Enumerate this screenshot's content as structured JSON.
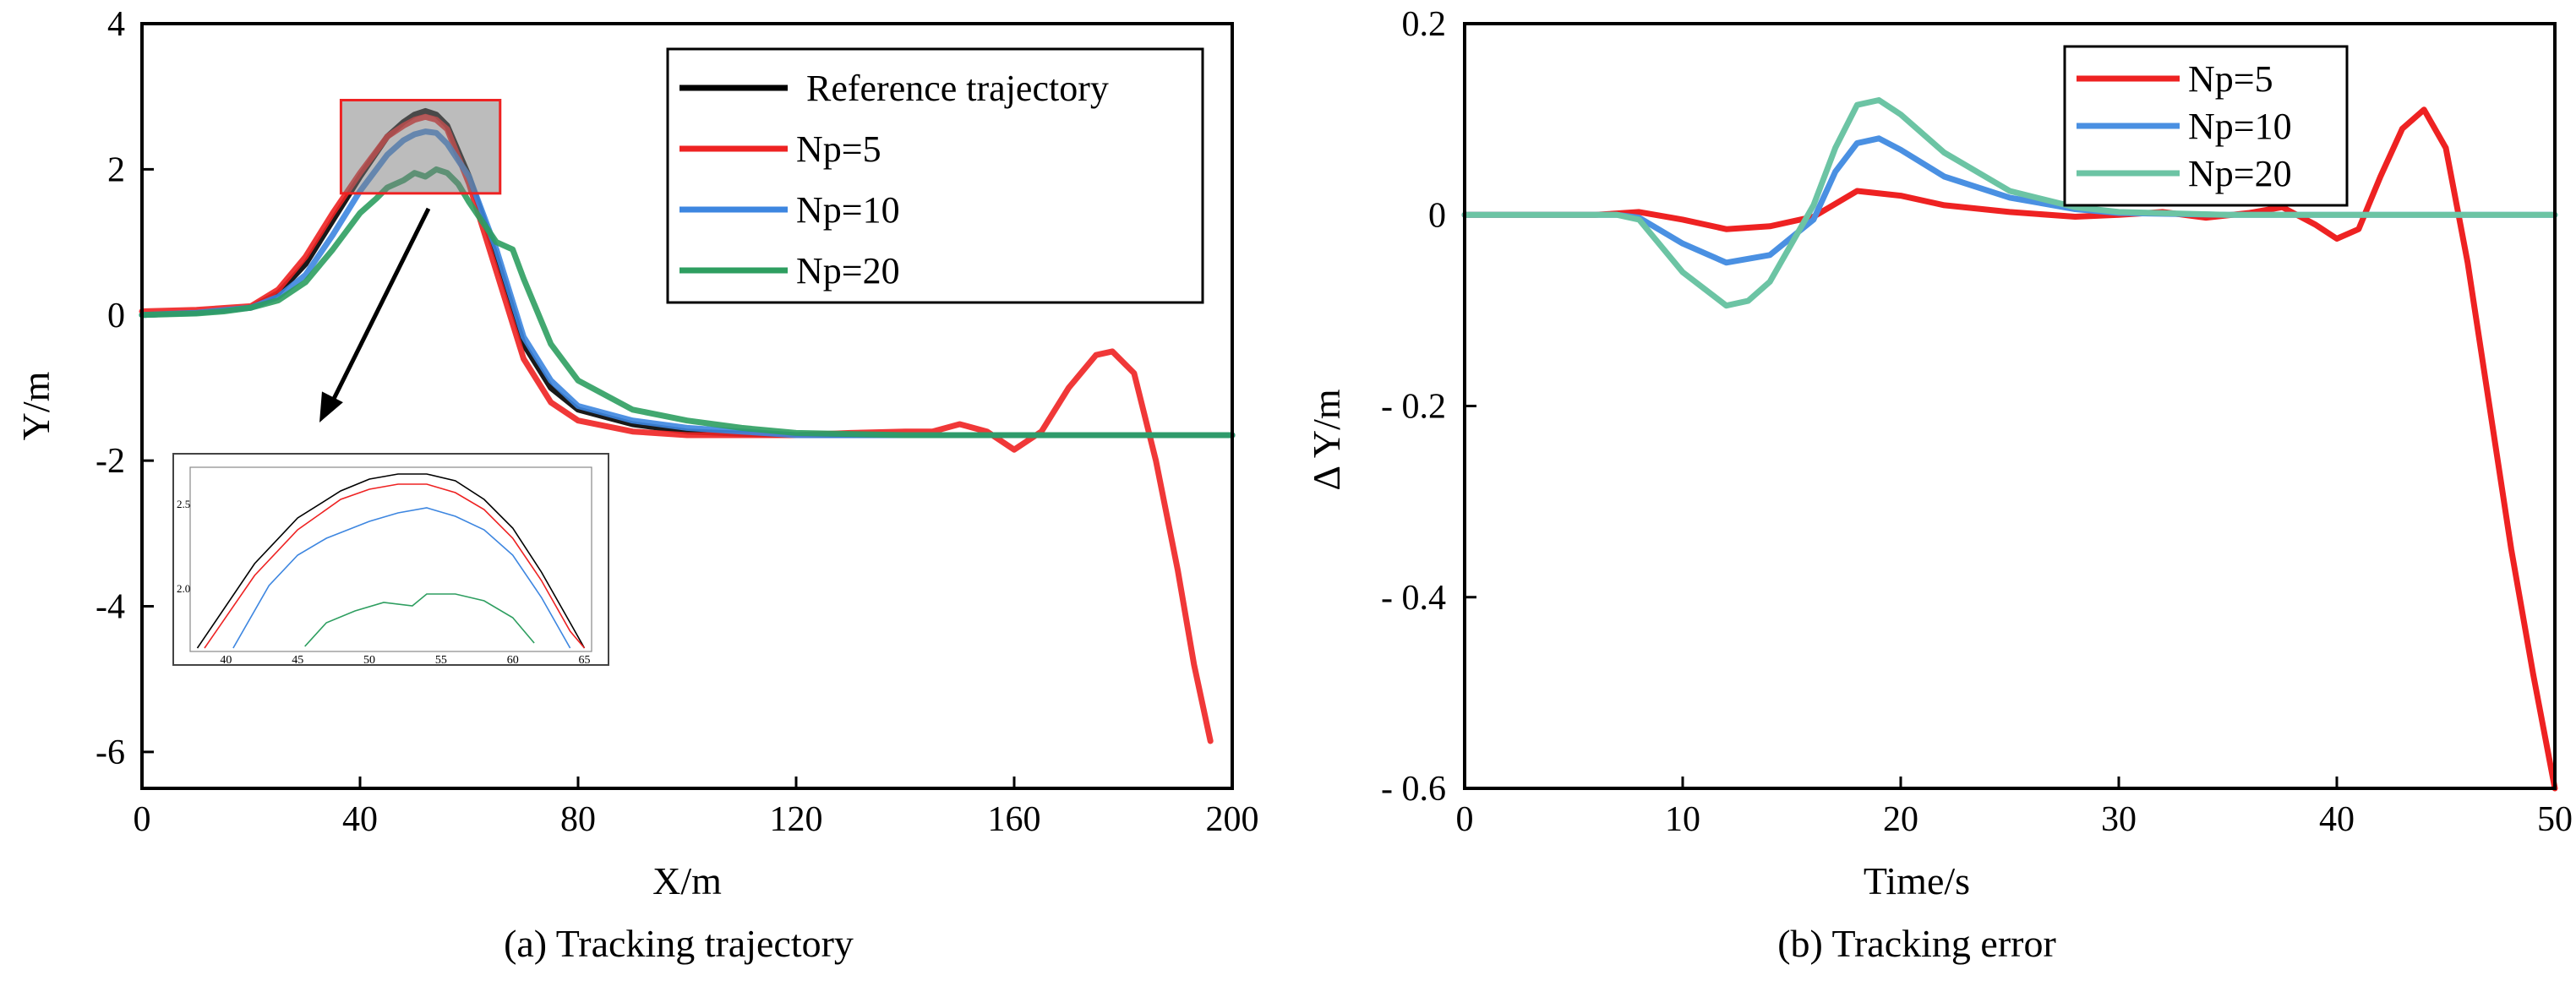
{
  "chart_data": [
    {
      "type": "line",
      "caption": "(a) Tracking trajectory",
      "xlabel": "X/m",
      "ylabel": "Y/m",
      "xlim": [
        0,
        200
      ],
      "ylim": [
        -6.5,
        4
      ],
      "x_ticks": [
        0,
        40,
        80,
        120,
        160,
        200
      ],
      "y_ticks": [
        4,
        2,
        0,
        -2,
        -4,
        -6
      ],
      "x_tick_labels": [
        "0",
        "40",
        "80",
        "120",
        "160",
        "200"
      ],
      "y_tick_labels": [
        "4",
        "2",
        "0",
        "-2",
        "-4",
        "-6"
      ],
      "legend": {
        "position": "top-right",
        "entries": [
          {
            "label": "Reference trajectory",
            "color": "#000000"
          },
          {
            "label": "Np=5",
            "color": "#ee2222"
          },
          {
            "label": "Np=10",
            "color": "#3d86e0"
          },
          {
            "label": "Np=20",
            "color": "#2e9e60"
          }
        ]
      },
      "series": [
        {
          "name": "Reference trajectory",
          "color": "#000000",
          "x": [
            0,
            10,
            20,
            25,
            30,
            35,
            40,
            45,
            48,
            50,
            52,
            54,
            56,
            60,
            65,
            70,
            75,
            80,
            90,
            100,
            110,
            120,
            140,
            160,
            180,
            200
          ],
          "y": [
            0,
            0.03,
            0.1,
            0.3,
            0.7,
            1.3,
            1.9,
            2.45,
            2.65,
            2.75,
            2.8,
            2.75,
            2.6,
            1.9,
            0.8,
            -0.4,
            -1.0,
            -1.3,
            -1.5,
            -1.6,
            -1.63,
            -1.65,
            -1.65,
            -1.65,
            -1.65,
            -1.65
          ]
        },
        {
          "name": "Np=5",
          "color": "#ee2222",
          "x": [
            0,
            10,
            20,
            25,
            30,
            35,
            40,
            45,
            48,
            50,
            52,
            54,
            56,
            60,
            65,
            70,
            75,
            80,
            90,
            100,
            110,
            120,
            130,
            140,
            145,
            150,
            155,
            160,
            165,
            170,
            175,
            178,
            182,
            186,
            190,
            193,
            196
          ],
          "y": [
            0.05,
            0.07,
            0.12,
            0.35,
            0.8,
            1.4,
            1.95,
            2.45,
            2.6,
            2.68,
            2.72,
            2.68,
            2.55,
            1.8,
            0.6,
            -0.6,
            -1.2,
            -1.45,
            -1.6,
            -1.65,
            -1.65,
            -1.65,
            -1.62,
            -1.6,
            -1.6,
            -1.5,
            -1.6,
            -1.85,
            -1.6,
            -1.0,
            -0.55,
            -0.5,
            -0.8,
            -2.0,
            -3.5,
            -4.8,
            -5.85
          ]
        },
        {
          "name": "Np=10",
          "color": "#3d86e0",
          "x": [
            0,
            10,
            20,
            25,
            30,
            35,
            40,
            45,
            48,
            50,
            52,
            54,
            56,
            60,
            65,
            70,
            75,
            80,
            90,
            100,
            110,
            120,
            140,
            160,
            180,
            200
          ],
          "y": [
            0,
            0.03,
            0.1,
            0.25,
            0.55,
            1.1,
            1.7,
            2.2,
            2.4,
            2.48,
            2.52,
            2.5,
            2.35,
            1.9,
            0.9,
            -0.3,
            -0.9,
            -1.25,
            -1.45,
            -1.55,
            -1.6,
            -1.65,
            -1.65,
            -1.65,
            -1.65,
            -1.65
          ]
        },
        {
          "name": "Np=20",
          "color": "#2e9e60",
          "x": [
            0,
            10,
            15,
            20,
            25,
            30,
            35,
            40,
            43,
            45,
            48,
            50,
            52,
            54,
            56,
            58,
            60,
            65,
            68,
            70,
            75,
            80,
            90,
            100,
            110,
            120,
            140,
            160,
            180,
            200
          ],
          "y": [
            0,
            0.02,
            0.05,
            0.1,
            0.2,
            0.45,
            0.9,
            1.4,
            1.6,
            1.75,
            1.85,
            1.95,
            1.9,
            2.0,
            1.95,
            1.8,
            1.55,
            1.0,
            0.9,
            0.5,
            -0.4,
            -0.9,
            -1.3,
            -1.45,
            -1.55,
            -1.62,
            -1.65,
            -1.65,
            -1.65,
            -1.65
          ]
        }
      ],
      "zoom_box": {
        "x_range": [
          36.5,
          65.7
        ],
        "y_range": [
          1.67,
          2.95
        ]
      },
      "inset": {
        "xlim": [
          37.5,
          65.5
        ],
        "ylim": [
          1.63,
          2.72
        ],
        "x_ticks": [
          40,
          45,
          50,
          55,
          60,
          65
        ],
        "x_tick_labels": [
          "40",
          "45",
          "50",
          "55",
          "60",
          "65"
        ],
        "y_ticks": [
          2.5,
          2.0
        ],
        "y_tick_labels": [
          "2.5",
          "2.0"
        ],
        "series": [
          {
            "name": "Reference trajectory",
            "color": "#000000",
            "x": [
              38,
              42,
              45,
              48,
              50,
              52,
              54,
              56,
              58,
              60,
              62,
              64,
              65
            ],
            "y": [
              1.65,
              2.15,
              2.42,
              2.58,
              2.65,
              2.68,
              2.68,
              2.64,
              2.53,
              2.36,
              2.1,
              1.8,
              1.65
            ]
          },
          {
            "name": "Np=5",
            "color": "#ee2222",
            "x": [
              38.5,
              42,
              45,
              48,
              50,
              52,
              54,
              56,
              58,
              60,
              62,
              64,
              65
            ],
            "y": [
              1.65,
              2.08,
              2.35,
              2.53,
              2.59,
              2.62,
              2.62,
              2.57,
              2.47,
              2.3,
              2.05,
              1.75,
              1.65
            ]
          },
          {
            "name": "Np=10",
            "color": "#3d86e0",
            "x": [
              40.5,
              43,
              45,
              47,
              50,
              52,
              54,
              56,
              58,
              60,
              62,
              64
            ],
            "y": [
              1.65,
              2.02,
              2.2,
              2.3,
              2.4,
              2.45,
              2.48,
              2.43,
              2.35,
              2.2,
              1.95,
              1.65
            ]
          },
          {
            "name": "Np=20",
            "color": "#2e9e60",
            "x": [
              45.5,
              47,
              49,
              51,
              53,
              54,
              56,
              58,
              60,
              61.5
            ],
            "y": [
              1.66,
              1.8,
              1.87,
              1.92,
              1.9,
              1.97,
              1.97,
              1.93,
              1.83,
              1.68
            ]
          }
        ]
      }
    },
    {
      "type": "line",
      "caption": "(b) Tracking error",
      "xlabel": "Time/s",
      "ylabel": "Δ Y/m",
      "xlim": [
        0,
        50
      ],
      "ylim": [
        -0.6,
        0.2
      ],
      "x_ticks": [
        0,
        10,
        20,
        30,
        40,
        50
      ],
      "y_ticks": [
        0.2,
        0,
        -0.2,
        -0.4,
        -0.6
      ],
      "x_tick_labels": [
        "0",
        "10",
        "20",
        "30",
        "40",
        "50"
      ],
      "y_tick_labels": [
        "0.2",
        "0",
        "- 0.2",
        "- 0.4",
        "- 0.6"
      ],
      "legend": {
        "position": "top-right",
        "entries": [
          {
            "label": "Np=5",
            "color": "#ee2222"
          },
          {
            "label": "Np=10",
            "color": "#4a90e2"
          },
          {
            "label": "Np=20",
            "color": "#6cc4a4"
          }
        ]
      },
      "series": [
        {
          "name": "Np=5",
          "color": "#ee2222",
          "x": [
            0,
            6,
            8,
            10,
            12,
            14,
            16,
            18,
            20,
            22,
            25,
            28,
            30,
            32,
            34,
            36,
            37.5,
            39,
            40,
            41,
            42,
            43,
            44,
            45,
            46,
            47,
            48,
            49,
            50
          ],
          "y": [
            0,
            0,
            0.003,
            -0.005,
            -0.015,
            -0.012,
            -0.002,
            0.025,
            0.02,
            0.01,
            0.003,
            -0.002,
            0,
            0.003,
            -0.003,
            0.002,
            0.008,
            -0.01,
            -0.025,
            -0.015,
            0.04,
            0.09,
            0.11,
            0.07,
            -0.05,
            -0.2,
            -0.35,
            -0.48,
            -0.6
          ]
        },
        {
          "name": "Np=10",
          "color": "#4a90e2",
          "x": [
            0,
            7,
            8,
            10,
            12,
            14,
            16,
            17,
            18,
            19,
            20,
            22,
            25,
            28,
            30,
            35,
            40,
            45,
            50
          ],
          "y": [
            0,
            0,
            -0.003,
            -0.03,
            -0.05,
            -0.042,
            -0.005,
            0.045,
            0.075,
            0.08,
            0.068,
            0.04,
            0.018,
            0.006,
            0.002,
            0,
            0,
            0,
            0
          ]
        },
        {
          "name": "Np=20",
          "color": "#6cc4a4",
          "x": [
            0,
            7,
            8,
            10,
            12,
            13,
            14,
            16,
            17,
            18,
            19,
            20,
            22,
            25,
            28,
            30,
            35,
            40,
            45,
            50
          ],
          "y": [
            0,
            0,
            -0.005,
            -0.06,
            -0.095,
            -0.09,
            -0.07,
            0.01,
            0.07,
            0.115,
            0.12,
            0.105,
            0.065,
            0.025,
            0.008,
            0.003,
            0,
            0,
            0,
            0
          ]
        }
      ]
    }
  ]
}
